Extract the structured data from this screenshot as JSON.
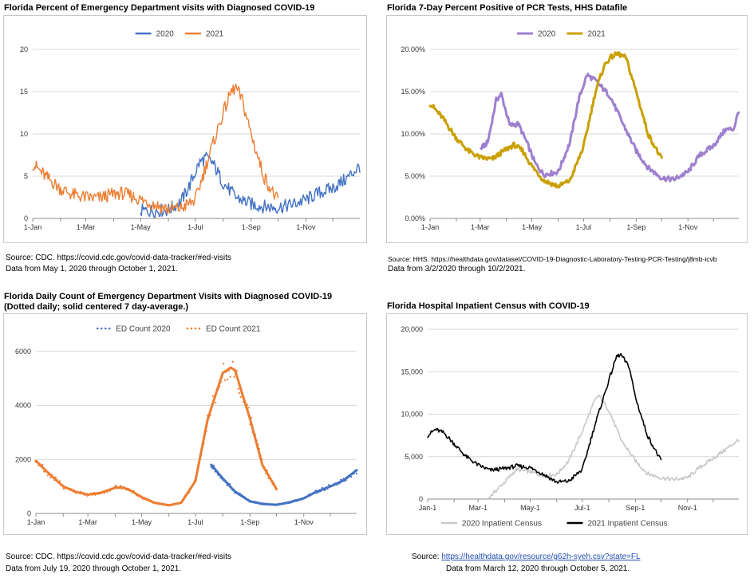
{
  "charts": [
    {
      "title": "Florida Percent of Emergency Department visits with Diagnosed COVID-19",
      "source_line1": "Source: CDC. https://covid.cdc.gov/covid-data-tracker/#ed-visits",
      "source_line2": "Data from May 1, 2020 through October 1, 2021."
    },
    {
      "title": "Florida 7-Day Percent Positive of PCR Tests, HHS Datafile",
      "source_line1": "Source: HHS. https://healthdata.gov/dataset/COVID-19-Diagnostic-Laboratory-Testing-PCR-Testing/j8mb-icvb",
      "source_line2": "Data from 3/2/2020 through 10/2/2021."
    },
    {
      "title": "Florida Daily Count of Emergency Department Visits with Diagnosed COVID-19",
      "subtitle": "(Dotted daily; solid centered 7 day-average.)",
      "source_line1": "Source: CDC. https://covid.cdc.gov/covid-data-tracker/#ed-visits",
      "source_line2": "Data from July 19, 2020 through October 1, 2021."
    },
    {
      "title": "Florida Hospital Inpatient Census with COVID-19",
      "source_prefix": "Source:",
      "source_link": "https://healthdata.gov/resource/g62h-syeh.csv?state=FL",
      "source_line2": "Data from March 12, 2020 through October 5, 2021."
    }
  ],
  "chart_data": [
    {
      "type": "line",
      "title": "Florida Percent of Emergency Department visits with Diagnosed COVID-19",
      "x_ticks": [
        "1-Jan",
        "1-Mar",
        "1-May",
        "1-Jul",
        "1-Sep",
        "1-Nov"
      ],
      "y_ticks": [
        "0",
        "5",
        "10",
        "15",
        "20"
      ],
      "ylim": [
        0,
        20
      ],
      "grid": true,
      "legend": "top-center",
      "series": [
        {
          "name": "2020",
          "color": "#4472c4",
          "points": [
            [
              "1-May",
              0.9
            ],
            [
              "15-May",
              0.9
            ],
            [
              "1-Jun",
              1.0
            ],
            [
              "15-Jun",
              2.0
            ],
            [
              "25-Jun",
              4.0
            ],
            [
              "5-Jul",
              6.5
            ],
            [
              "12-Jul",
              7.2
            ],
            [
              "20-Jul",
              6.6
            ],
            [
              "1-Aug",
              4.2
            ],
            [
              "15-Aug",
              2.5
            ],
            [
              "1-Sep",
              1.7
            ],
            [
              "15-Sep",
              1.4
            ],
            [
              "1-Oct",
              1.3
            ],
            [
              "15-Oct",
              1.6
            ],
            [
              "1-Nov",
              2.2
            ],
            [
              "15-Nov",
              3.0
            ],
            [
              "1-Dec",
              3.6
            ],
            [
              "15-Dec",
              4.6
            ],
            [
              "31-Dec",
              6.2
            ]
          ]
        },
        {
          "name": "2021",
          "color": "#ed7d31",
          "points": [
            [
              "1-Jan",
              6.5
            ],
            [
              "15-Jan",
              5.0
            ],
            [
              "1-Feb",
              3.5
            ],
            [
              "15-Feb",
              2.8
            ],
            [
              "1-Mar",
              2.5
            ],
            [
              "15-Mar",
              2.4
            ],
            [
              "1-Apr",
              2.9
            ],
            [
              "10-Apr",
              3.0
            ],
            [
              "20-Apr",
              2.7
            ],
            [
              "1-May",
              2.2
            ],
            [
              "15-May",
              1.7
            ],
            [
              "1-Jun",
              1.1
            ],
            [
              "15-Jun",
              1.2
            ],
            [
              "1-Jul",
              2.2
            ],
            [
              "15-Jul",
              7.0
            ],
            [
              "1-Aug",
              12.5
            ],
            [
              "10-Aug",
              15.0
            ],
            [
              "15-Aug",
              15.5
            ],
            [
              "22-Aug",
              14.0
            ],
            [
              "1-Sep",
              10.0
            ],
            [
              "15-Sep",
              5.0
            ],
            [
              "1-Oct",
              2.0
            ]
          ]
        }
      ]
    },
    {
      "type": "line",
      "title": "Florida 7-Day Percent Positive of PCR Tests, HHS Datafile",
      "x_ticks": [
        "1-Jan",
        "1-Mar",
        "1-May",
        "1-Jul",
        "1-Sep",
        "1-Nov"
      ],
      "y_ticks": [
        "0.00%",
        "5.00%",
        "10.00%",
        "15.00%",
        "20.00%"
      ],
      "ylim": [
        0,
        20
      ],
      "grid": true,
      "legend": "top-center",
      "series": [
        {
          "name": "2020",
          "color": "#9e80cf",
          "points": [
            [
              "2-Mar",
              8.3
            ],
            [
              "10-Mar",
              9.0
            ],
            [
              "20-Mar",
              14.0
            ],
            [
              "26-Mar",
              14.7
            ],
            [
              "5-Apr",
              11.0
            ],
            [
              "15-Apr",
              11.2
            ],
            [
              "25-Apr",
              9.0
            ],
            [
              "5-May",
              6.5
            ],
            [
              "15-May",
              5.2
            ],
            [
              "1-Jun",
              5.5
            ],
            [
              "15-Jun",
              9.0
            ],
            [
              "25-Jun",
              14.0
            ],
            [
              "5-Jul",
              17.0
            ],
            [
              "15-Jul",
              16.3
            ],
            [
              "1-Aug",
              14.5
            ],
            [
              "15-Aug",
              11.5
            ],
            [
              "1-Sep",
              8.0
            ],
            [
              "15-Sep",
              6.0
            ],
            [
              "1-Oct",
              4.8
            ],
            [
              "15-Oct",
              4.6
            ],
            [
              "1-Nov",
              5.5
            ],
            [
              "15-Nov",
              7.5
            ],
            [
              "1-Dec",
              8.6
            ],
            [
              "15-Dec",
              10.5
            ],
            [
              "25-Dec",
              10.6
            ],
            [
              "31-Dec",
              12.8
            ]
          ]
        },
        {
          "name": "2021",
          "color": "#c9a000",
          "points": [
            [
              "1-Jan",
              13.6
            ],
            [
              "15-Jan",
              12.0
            ],
            [
              "1-Feb",
              9.5
            ],
            [
              "15-Feb",
              8.0
            ],
            [
              "1-Mar",
              7.2
            ],
            [
              "15-Mar",
              7.0
            ],
            [
              "1-Apr",
              8.2
            ],
            [
              "10-Apr",
              8.7
            ],
            [
              "20-Apr",
              8.0
            ],
            [
              "1-May",
              6.2
            ],
            [
              "15-May",
              4.5
            ],
            [
              "1-Jun",
              3.8
            ],
            [
              "15-Jun",
              4.5
            ],
            [
              "1-Jul",
              8.5
            ],
            [
              "15-Jul",
              15.0
            ],
            [
              "25-Jul",
              18.0
            ],
            [
              "1-Aug",
              19.0
            ],
            [
              "10-Aug",
              19.5
            ],
            [
              "20-Aug",
              19.0
            ],
            [
              "1-Sep",
              15.0
            ],
            [
              "15-Sep",
              10.0
            ],
            [
              "1-Oct",
              7.0
            ]
          ]
        }
      ]
    },
    {
      "type": "line",
      "title": "Florida Daily Count of Emergency Department Visits with Diagnosed COVID-19",
      "x_ticks": [
        "1-Jan",
        "1-Mar",
        "1-May",
        "1-Jul",
        "1-Sep",
        "1-Nov"
      ],
      "y_ticks": [
        "0",
        "2000",
        "4000",
        "6000"
      ],
      "ylim": [
        0,
        6200
      ],
      "grid": true,
      "legend": "top-center",
      "series": [
        {
          "name": "ED Count 2020",
          "color": "#4472c4",
          "points": [
            [
              "19-Jul",
              1800
            ],
            [
              "1-Aug",
              1300
            ],
            [
              "15-Aug",
              800
            ],
            [
              "1-Sep",
              450
            ],
            [
              "15-Sep",
              350
            ],
            [
              "1-Oct",
              320
            ],
            [
              "15-Oct",
              400
            ],
            [
              "1-Nov",
              560
            ],
            [
              "15-Nov",
              800
            ],
            [
              "1-Dec",
              1000
            ],
            [
              "15-Dec",
              1200
            ],
            [
              "31-Dec",
              1600
            ]
          ]
        },
        {
          "name": "ED Count 2021",
          "color": "#ed7d31",
          "points": [
            [
              "1-Jan",
              1950
            ],
            [
              "15-Jan",
              1500
            ],
            [
              "1-Feb",
              1000
            ],
            [
              "15-Feb",
              800
            ],
            [
              "1-Mar",
              700
            ],
            [
              "15-Mar",
              760
            ],
            [
              "1-Apr",
              950
            ],
            [
              "10-Apr",
              960
            ],
            [
              "20-Apr",
              820
            ],
            [
              "1-May",
              600
            ],
            [
              "15-May",
              400
            ],
            [
              "1-Jun",
              300
            ],
            [
              "15-Jun",
              400
            ],
            [
              "1-Jul",
              1200
            ],
            [
              "15-Jul",
              3500
            ],
            [
              "1-Aug",
              5200
            ],
            [
              "10-Aug",
              5400
            ],
            [
              "15-Aug",
              5300
            ],
            [
              "1-Sep",
              3500
            ],
            [
              "15-Sep",
              1800
            ],
            [
              "1-Oct",
              900
            ]
          ]
        }
      ]
    },
    {
      "type": "line",
      "title": "Florida Hospital Inpatient Census with COVID-19",
      "x_ticks": [
        "Jan-1",
        "Mar-1",
        "May-1",
        "Jul-1",
        "Sep-1",
        "Nov-1"
      ],
      "y_ticks": [
        "0",
        "5,000",
        "10,000",
        "15,000",
        "20,000"
      ],
      "ylim": [
        0,
        20000
      ],
      "grid": true,
      "legend": "bottom-center",
      "series": [
        {
          "name": "2020 Inpatient Census",
          "color": "#c8c8c8",
          "points": [
            [
              "12-Mar",
              0
            ],
            [
              "1-Apr",
              2000
            ],
            [
              "15-Apr",
              3500
            ],
            [
              "1-May",
              3200
            ],
            [
              "15-May",
              2800
            ],
            [
              "1-Jun",
              2900
            ],
            [
              "15-Jun",
              4500
            ],
            [
              "1-Jul",
              8000
            ],
            [
              "15-Jul",
              11500
            ],
            [
              "20-Jul",
              12200
            ],
            [
              "1-Aug",
              10500
            ],
            [
              "15-Aug",
              7000
            ],
            [
              "1-Sep",
              4500
            ],
            [
              "15-Sep",
              3000
            ],
            [
              "1-Oct",
              2500
            ],
            [
              "15-Oct",
              2300
            ],
            [
              "1-Nov",
              2500
            ],
            [
              "15-Nov",
              3700
            ],
            [
              "1-Dec",
              4800
            ],
            [
              "15-Dec",
              5800
            ],
            [
              "31-Dec",
              7000
            ]
          ]
        },
        {
          "name": "2021 Inpatient Census",
          "color": "#000000",
          "points": [
            [
              "1-Jan",
              7500
            ],
            [
              "10-Jan",
              8200
            ],
            [
              "20-Jan",
              7800
            ],
            [
              "1-Feb",
              6500
            ],
            [
              "15-Feb",
              5000
            ],
            [
              "1-Mar",
              4000
            ],
            [
              "15-Mar",
              3400
            ],
            [
              "1-Apr",
              3600
            ],
            [
              "15-Apr",
              3900
            ],
            [
              "1-May",
              3700
            ],
            [
              "15-May",
              3000
            ],
            [
              "1-Jun",
              2000
            ],
            [
              "15-Jun",
              2100
            ],
            [
              "1-Jul",
              3500
            ],
            [
              "15-Jul",
              8500
            ],
            [
              "1-Aug",
              14000
            ],
            [
              "10-Aug",
              16800
            ],
            [
              "15-Aug",
              17000
            ],
            [
              "25-Aug",
              15500
            ],
            [
              "1-Sep",
              12000
            ],
            [
              "15-Sep",
              7500
            ],
            [
              "1-Oct",
              4500
            ]
          ]
        }
      ]
    }
  ]
}
